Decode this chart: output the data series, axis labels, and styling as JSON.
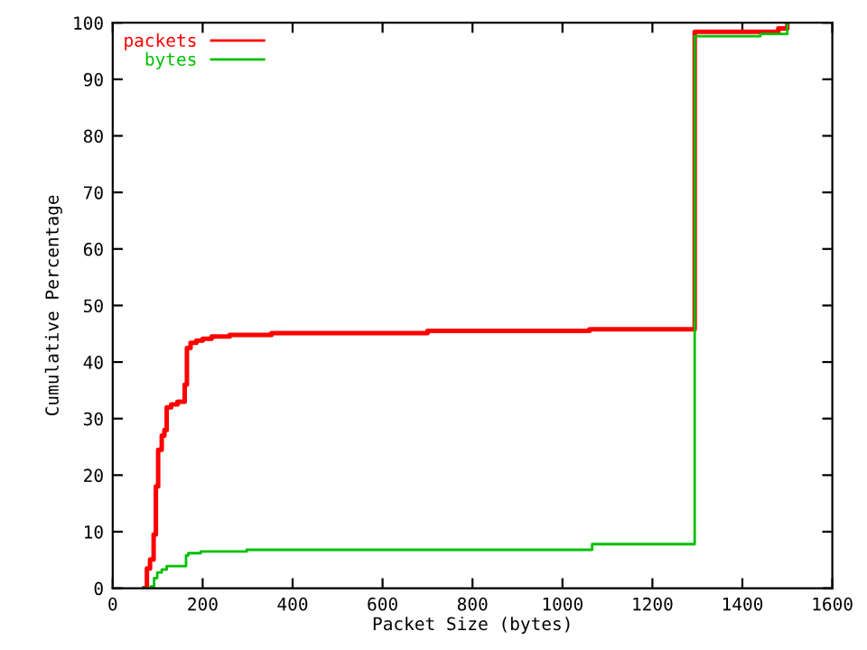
{
  "chart_data": {
    "type": "step",
    "xlabel": "Packet Size (bytes)",
    "ylabel": "Cumulative Percentage",
    "xlim": [
      0,
      1600
    ],
    "ylim": [
      0,
      100
    ],
    "xticks": [
      0,
      200,
      400,
      600,
      800,
      1000,
      1200,
      1400,
      1600
    ],
    "yticks": [
      0,
      10,
      20,
      30,
      40,
      50,
      60,
      70,
      80,
      90,
      100
    ],
    "grid": false,
    "legend": "top left",
    "series": [
      {
        "name": "packets",
        "color": "#ff0000",
        "x": [
          71,
          76,
          83,
          91,
          96,
          101,
          109,
          115,
          120,
          130,
          144,
          160,
          165,
          173,
          186,
          200,
          220,
          260,
          353,
          700,
          1060,
          1294,
          1480,
          1500
        ],
        "values": [
          0,
          3.5,
          5.1,
          9.5,
          18,
          24.5,
          27,
          28,
          32,
          32.5,
          33,
          36,
          42.5,
          43.4,
          43.8,
          44.1,
          44.5,
          44.8,
          45.1,
          45.5,
          45.8,
          98.4,
          99,
          100
        ]
      },
      {
        "name": "bytes",
        "color": "#00c000",
        "x": [
          67,
          85,
          92,
          99,
          109,
          120,
          163,
          168,
          196,
          298,
          1066,
          1294,
          1440,
          1500
        ],
        "values": [
          0,
          0.3,
          1.8,
          2.8,
          3.3,
          3.9,
          5.8,
          6.2,
          6.5,
          6.8,
          7.8,
          97.6,
          98,
          100
        ]
      }
    ]
  }
}
